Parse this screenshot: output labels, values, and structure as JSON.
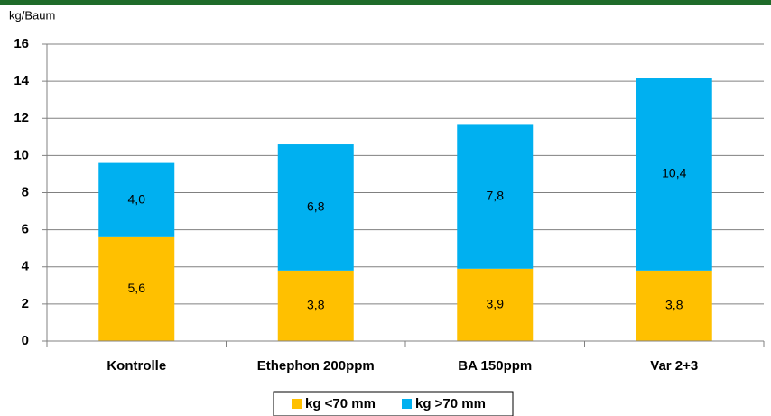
{
  "chart_data": {
    "type": "bar",
    "stacked": true,
    "y_label": "kg/Baum",
    "categories": [
      "Kontrolle",
      "Ethephon 200ppm",
      "BA 150ppm",
      "Var 2+3"
    ],
    "series": [
      {
        "name": "kg <70 mm",
        "color": "#ffc000",
        "values": [
          5.6,
          3.8,
          3.9,
          3.8
        ],
        "value_labels": [
          "5,6",
          "3,8",
          "3,9",
          "3,8"
        ]
      },
      {
        "name": "kg >70 mm",
        "color": "#00b0f0",
        "values": [
          4.0,
          6.8,
          7.8,
          10.4
        ],
        "value_labels": [
          "4,0",
          "6,8",
          "7,8",
          "10,4"
        ]
      }
    ],
    "ylim": [
      0,
      16
    ],
    "yticks": [
      0,
      2,
      4,
      6,
      8,
      10,
      12,
      14,
      16
    ],
    "grid": true,
    "legend": "bottom"
  }
}
